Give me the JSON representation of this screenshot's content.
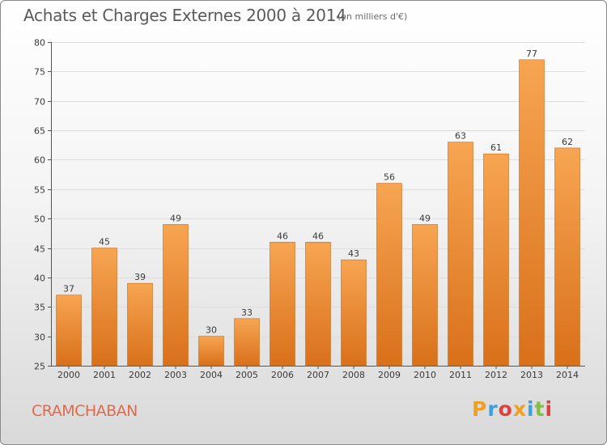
{
  "header": {
    "title": "Achats et Charges Externes 2000 à 2014",
    "unit": "(en milliers d'€)"
  },
  "footer": {
    "commune": "CRAMCHABAN",
    "logo": {
      "text": "Proxiti",
      "colors": [
        "#f0a020",
        "#3aa0e0",
        "#e04040",
        "#f0a020",
        "#3aa0e0",
        "#80c040",
        "#e04040"
      ]
    }
  },
  "colors": {
    "bar_light": "#f7a552",
    "bar_dark": "#d9701a",
    "commune": "#e06a4a"
  },
  "chart_data": {
    "type": "bar",
    "title": "Achats et Charges Externes 2000 à 2014",
    "subtitle": "(en milliers d'€)",
    "categories": [
      "2000",
      "2001",
      "2002",
      "2003",
      "2004",
      "2005",
      "2006",
      "2007",
      "2008",
      "2009",
      "2010",
      "2011",
      "2012",
      "2013",
      "2014"
    ],
    "values": [
      37,
      45,
      39,
      49,
      30,
      33,
      46,
      46,
      43,
      56,
      49,
      63,
      61,
      77,
      62
    ],
    "ylim": [
      25,
      80
    ],
    "yticks": [
      25,
      30,
      35,
      40,
      45,
      50,
      55,
      60,
      65,
      70,
      75,
      80
    ],
    "grid": "horizontal",
    "xlabel": "",
    "ylabel": ""
  }
}
